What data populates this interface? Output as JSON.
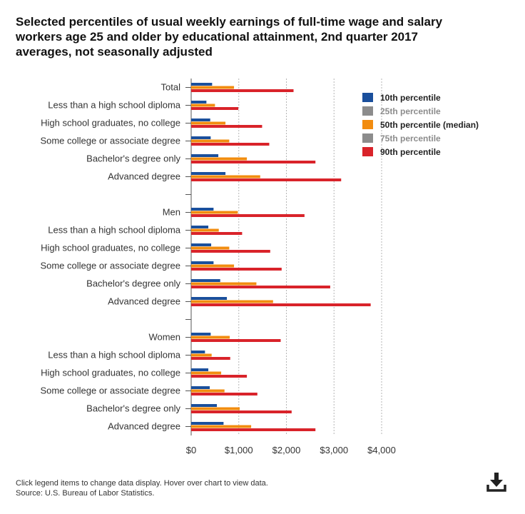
{
  "title": "Selected percentiles of usual weekly earnings of full-time wage and salary workers age 25 and older by educational attainment, 2nd quarter 2017 averages, not seasonally adjusted",
  "footer": {
    "note": "Click legend items to change data display. Hover over chart to view data.",
    "source": "Source: U.S. Bureau of Labor Statistics."
  },
  "download_icon": "download-icon",
  "colors": {
    "p10": "#1a4f9c",
    "p25": "#8c8c8c",
    "p50": "#f28c0f",
    "p75": "#8c8c8c",
    "p90": "#d9232a"
  },
  "chart_data": {
    "type": "bar",
    "orientation": "horizontal",
    "title": "Selected percentiles of usual weekly earnings of full-time wage and salary workers age 25 and older by educational attainment, 2nd quarter 2017 averages, not seasonally adjusted",
    "xlabel": "",
    "ylabel": "",
    "xlim": [
      0,
      4000
    ],
    "xticks": [
      "$0",
      "$1,000",
      "$2,000",
      "$3,000",
      "$4,000"
    ],
    "xtick_values": [
      0,
      1000,
      2000,
      3000,
      4000
    ],
    "grid": "vertical dotted",
    "legend_position": "top-right",
    "groups": [
      {
        "name": "Total",
        "categories": [
          "Total",
          "Less than a high school diploma",
          "High school graduates, no college",
          "Some college or associate degree",
          "Bachelor's degree only",
          "Advanced degree"
        ]
      },
      {
        "name": "Men",
        "categories": [
          "Men",
          "Less than a high school diploma",
          "High school graduates, no college",
          "Some college or associate degree",
          "Bachelor's degree only",
          "Advanced degree"
        ]
      },
      {
        "name": "Women",
        "categories": [
          "Women",
          "Less than a high school diploma",
          "High school graduates, no college",
          "Some college or associate degree",
          "Bachelor's degree only",
          "Advanced degree"
        ]
      }
    ],
    "series": [
      {
        "key": "p10",
        "name": "10th percentile",
        "visible": true,
        "values": [
          [
            440,
            320,
            400,
            410,
            570,
            720
          ],
          [
            470,
            360,
            420,
            470,
            610,
            750
          ],
          [
            410,
            290,
            360,
            390,
            540,
            680
          ]
        ]
      },
      {
        "key": "p25",
        "name": "25th percentile",
        "visible": false,
        "values": []
      },
      {
        "key": "p50",
        "name": "50th percentile (median)",
        "visible": true,
        "values": [
          [
            900,
            500,
            720,
            800,
            1170,
            1450
          ],
          [
            980,
            580,
            800,
            900,
            1370,
            1720
          ],
          [
            810,
            430,
            630,
            700,
            1020,
            1260
          ]
        ]
      },
      {
        "key": "p75",
        "name": "75th percentile",
        "visible": false,
        "values": []
      },
      {
        "key": "p90",
        "name": "90th percentile",
        "visible": true,
        "values": [
          [
            2150,
            990,
            1490,
            1640,
            2610,
            3150
          ],
          [
            2380,
            1070,
            1660,
            1900,
            2920,
            3770
          ],
          [
            1880,
            820,
            1170,
            1390,
            2110,
            2610
          ]
        ]
      }
    ]
  }
}
